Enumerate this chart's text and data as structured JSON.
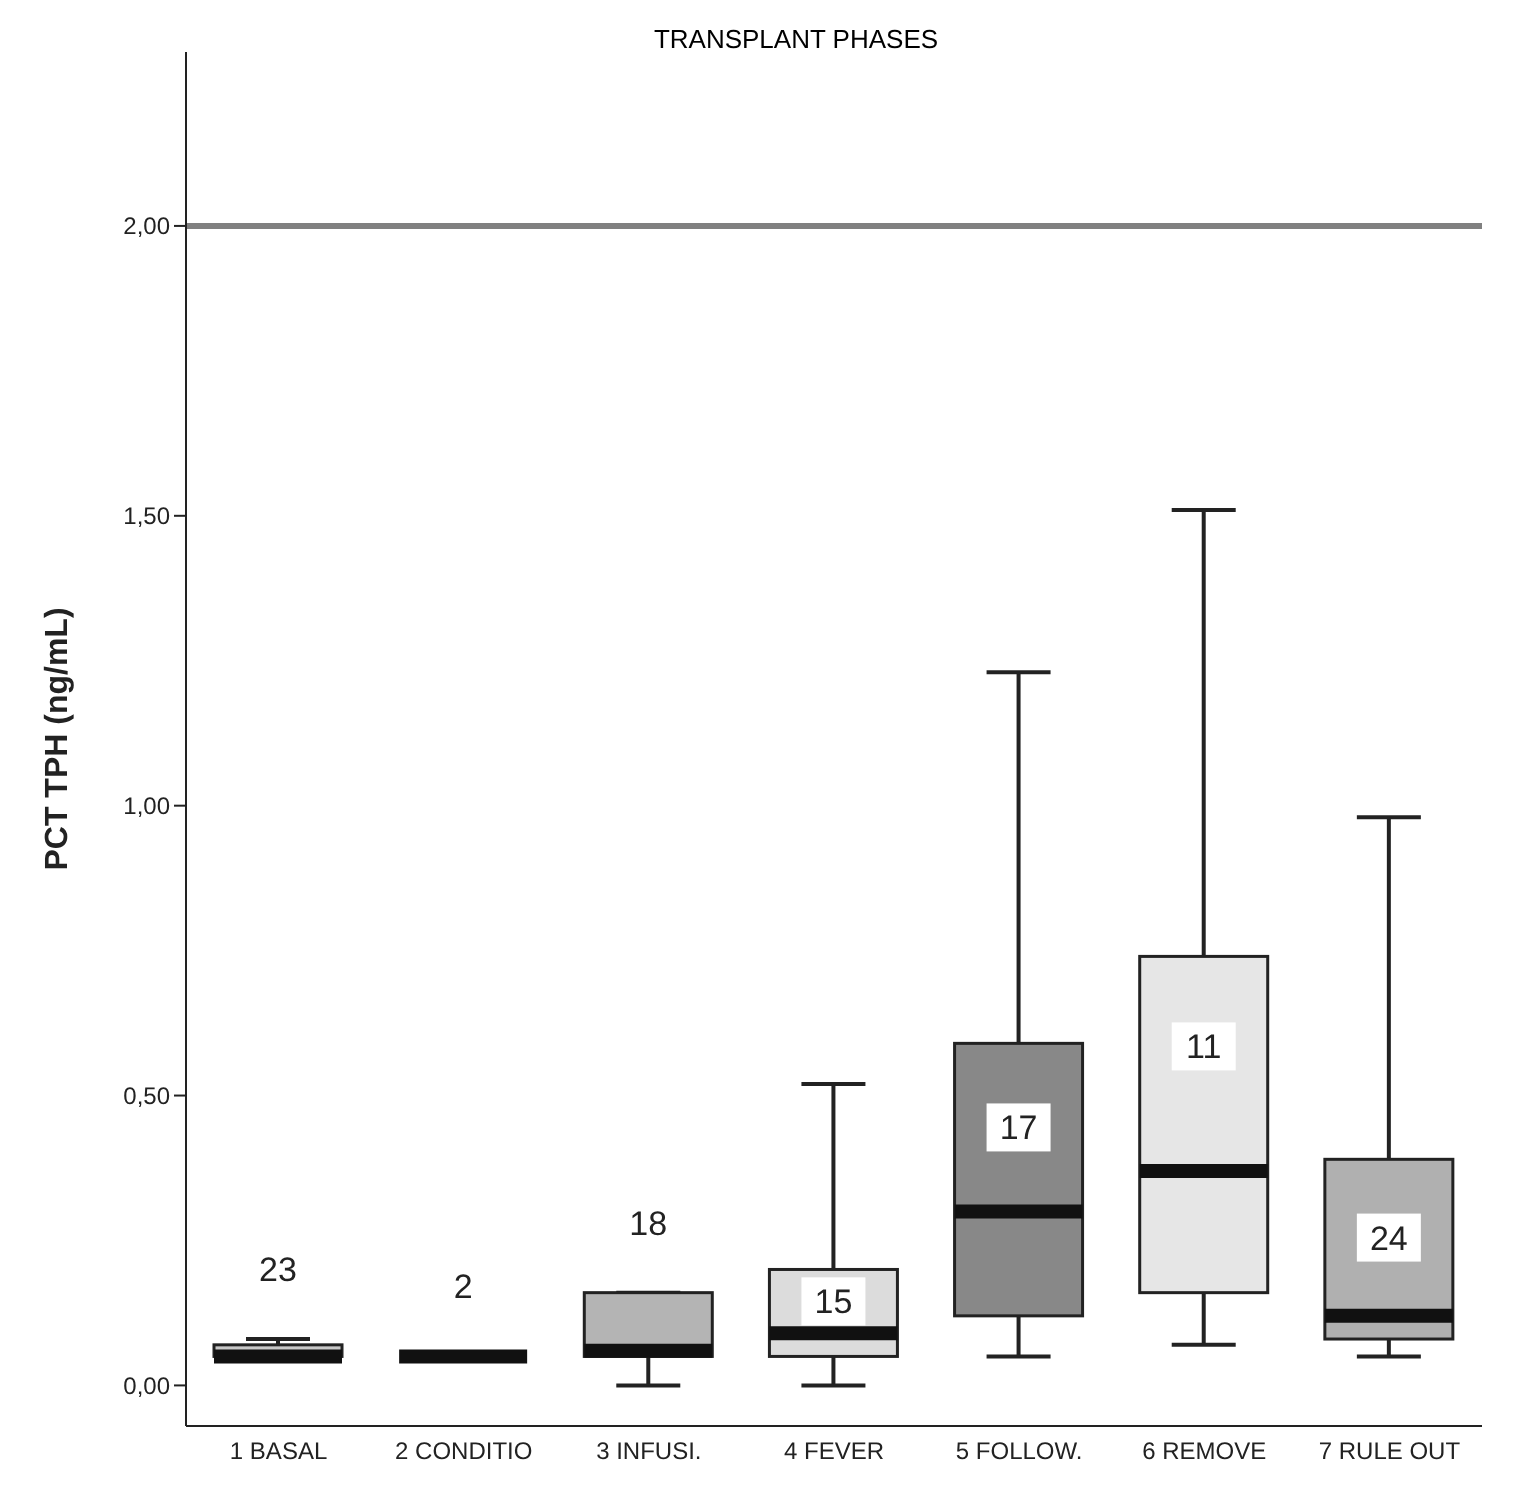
{
  "chart_data": {
    "type": "box",
    "title": "TRANSPLANT PHASES",
    "ylabel": "PCT TPH (ng/mL)",
    "categories": [
      "1 BASAL",
      "2 CONDITIO",
      "3 INFUSI.",
      "4 FEVER",
      "5 FOLLOW.",
      "6 REMOVE",
      "7 RULE OUT"
    ],
    "boxes": [
      {
        "low": 0.05,
        "q1": 0.05,
        "median": 0.05,
        "q3": 0.07,
        "high": 0.08
      },
      {
        "low": 0.05,
        "q1": 0.05,
        "median": 0.05,
        "q3": 0.05,
        "high": 0.05
      },
      {
        "low": 0,
        "q1": 0.05,
        "median": 0.06,
        "q3": 0.16,
        "high": 0.16
      },
      {
        "low": 0,
        "q1": 0.05,
        "median": 0.09,
        "q3": 0.2,
        "high": 0.52
      },
      {
        "low": 0.05,
        "q1": 0.12,
        "median": 0.3,
        "q3": 0.59,
        "high": 1.23
      },
      {
        "low": 0.07,
        "q1": 0.16,
        "median": 0.37,
        "q3": 0.74,
        "high": 1.51
      },
      {
        "low": 0.05,
        "q1": 0.08,
        "median": 0.12,
        "q3": 0.39,
        "high": 0.98
      }
    ],
    "colors": [
      "#c8c8c8",
      "#111111",
      "#b4b4b4",
      "#dcdcdc",
      "#888888",
      "#e6e6e6",
      "#b0b0b0"
    ],
    "ylim": [
      -0.07,
      2.3
    ],
    "yticks": [
      {
        "value": 0,
        "label": "0,00"
      },
      {
        "value": 0.5,
        "label": "0,50"
      },
      {
        "value": 1,
        "label": "1,00"
      },
      {
        "value": 1.5,
        "label": "1,50"
      },
      {
        "value": 2,
        "label": "2,00"
      }
    ],
    "ref_lines": [
      {
        "axis": "y",
        "value": 2,
        "color": "#808080"
      }
    ],
    "annotations": [
      "23",
      "2",
      "18",
      "15",
      "17",
      "11",
      "24"
    ]
  }
}
